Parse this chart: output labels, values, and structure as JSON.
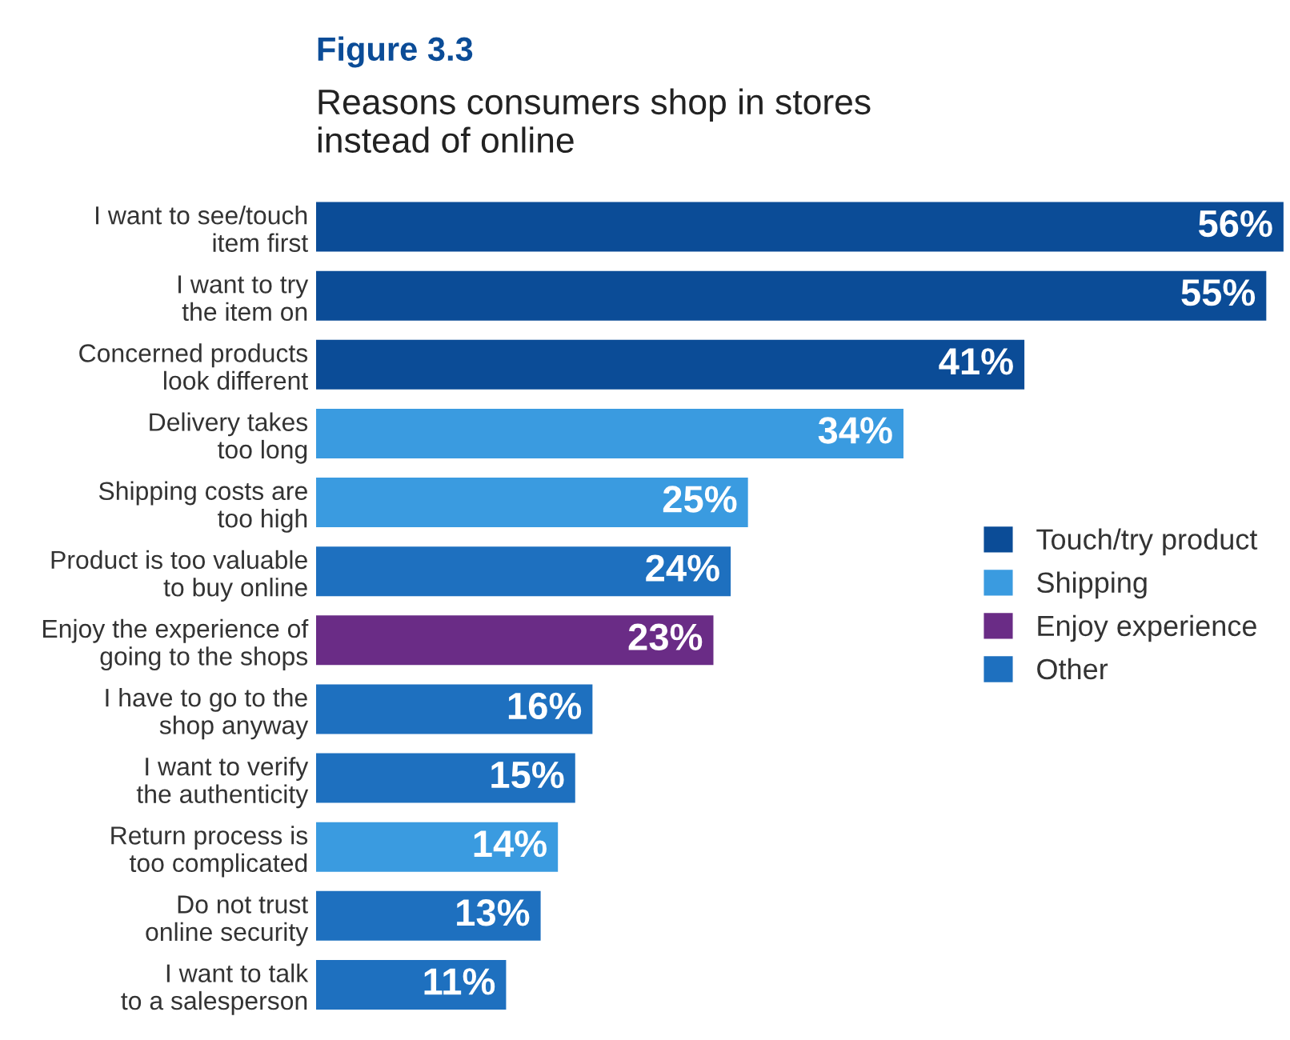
{
  "chart_data": {
    "type": "bar",
    "orientation": "horizontal",
    "title": "Figure 3.3",
    "subtitle": "Reasons consumers shop in stores\ninstead of online",
    "categories": [
      "I want to see/touch\nitem first",
      "I want to try\nthe item on",
      "Concerned products\nlook different",
      "Delivery takes\ntoo long",
      "Shipping costs are\ntoo high",
      "Product is too valuable\nto buy online",
      "Enjoy the experience of\ngoing to the shops",
      "I have to go to the\nshop anyway",
      "I want to verify\nthe authenticity",
      "Return process is\ntoo complicated",
      "Do not trust\nonline security",
      "I want to talk\nto a salesperson"
    ],
    "series": [
      {
        "name": "Touch/try product",
        "color": "#0b4c97",
        "values": [
          56,
          55,
          41,
          null,
          null,
          null,
          null,
          null,
          null,
          null,
          null,
          null
        ],
        "value_labels": [
          "56%",
          "55%",
          "41%",
          null,
          null,
          null,
          null,
          null,
          null,
          null,
          null,
          null
        ]
      },
      {
        "name": "Shipping",
        "color": "#3a9be0",
        "values": [
          null,
          null,
          null,
          34,
          25,
          null,
          null,
          null,
          null,
          14,
          null,
          null
        ],
        "value_labels": [
          null,
          null,
          null,
          "34%",
          "25%",
          null,
          null,
          null,
          null,
          "14%",
          null,
          null
        ]
      },
      {
        "name": "Enjoy experience",
        "color": "#6a2c86",
        "values": [
          null,
          null,
          null,
          null,
          null,
          null,
          23,
          null,
          null,
          null,
          null,
          null
        ],
        "value_labels": [
          null,
          null,
          null,
          null,
          null,
          null,
          "23%",
          null,
          null,
          null,
          null,
          null
        ]
      },
      {
        "name": "Other",
        "color": "#1e70bf",
        "values": [
          null,
          null,
          null,
          null,
          null,
          24,
          null,
          16,
          15,
          null,
          13,
          11
        ],
        "value_labels": [
          null,
          null,
          null,
          null,
          null,
          "24%",
          null,
          "16%",
          "15%",
          null,
          "13%",
          "11%"
        ]
      }
    ],
    "legend": "center right",
    "tick_labels": "y",
    "grid": false
  }
}
